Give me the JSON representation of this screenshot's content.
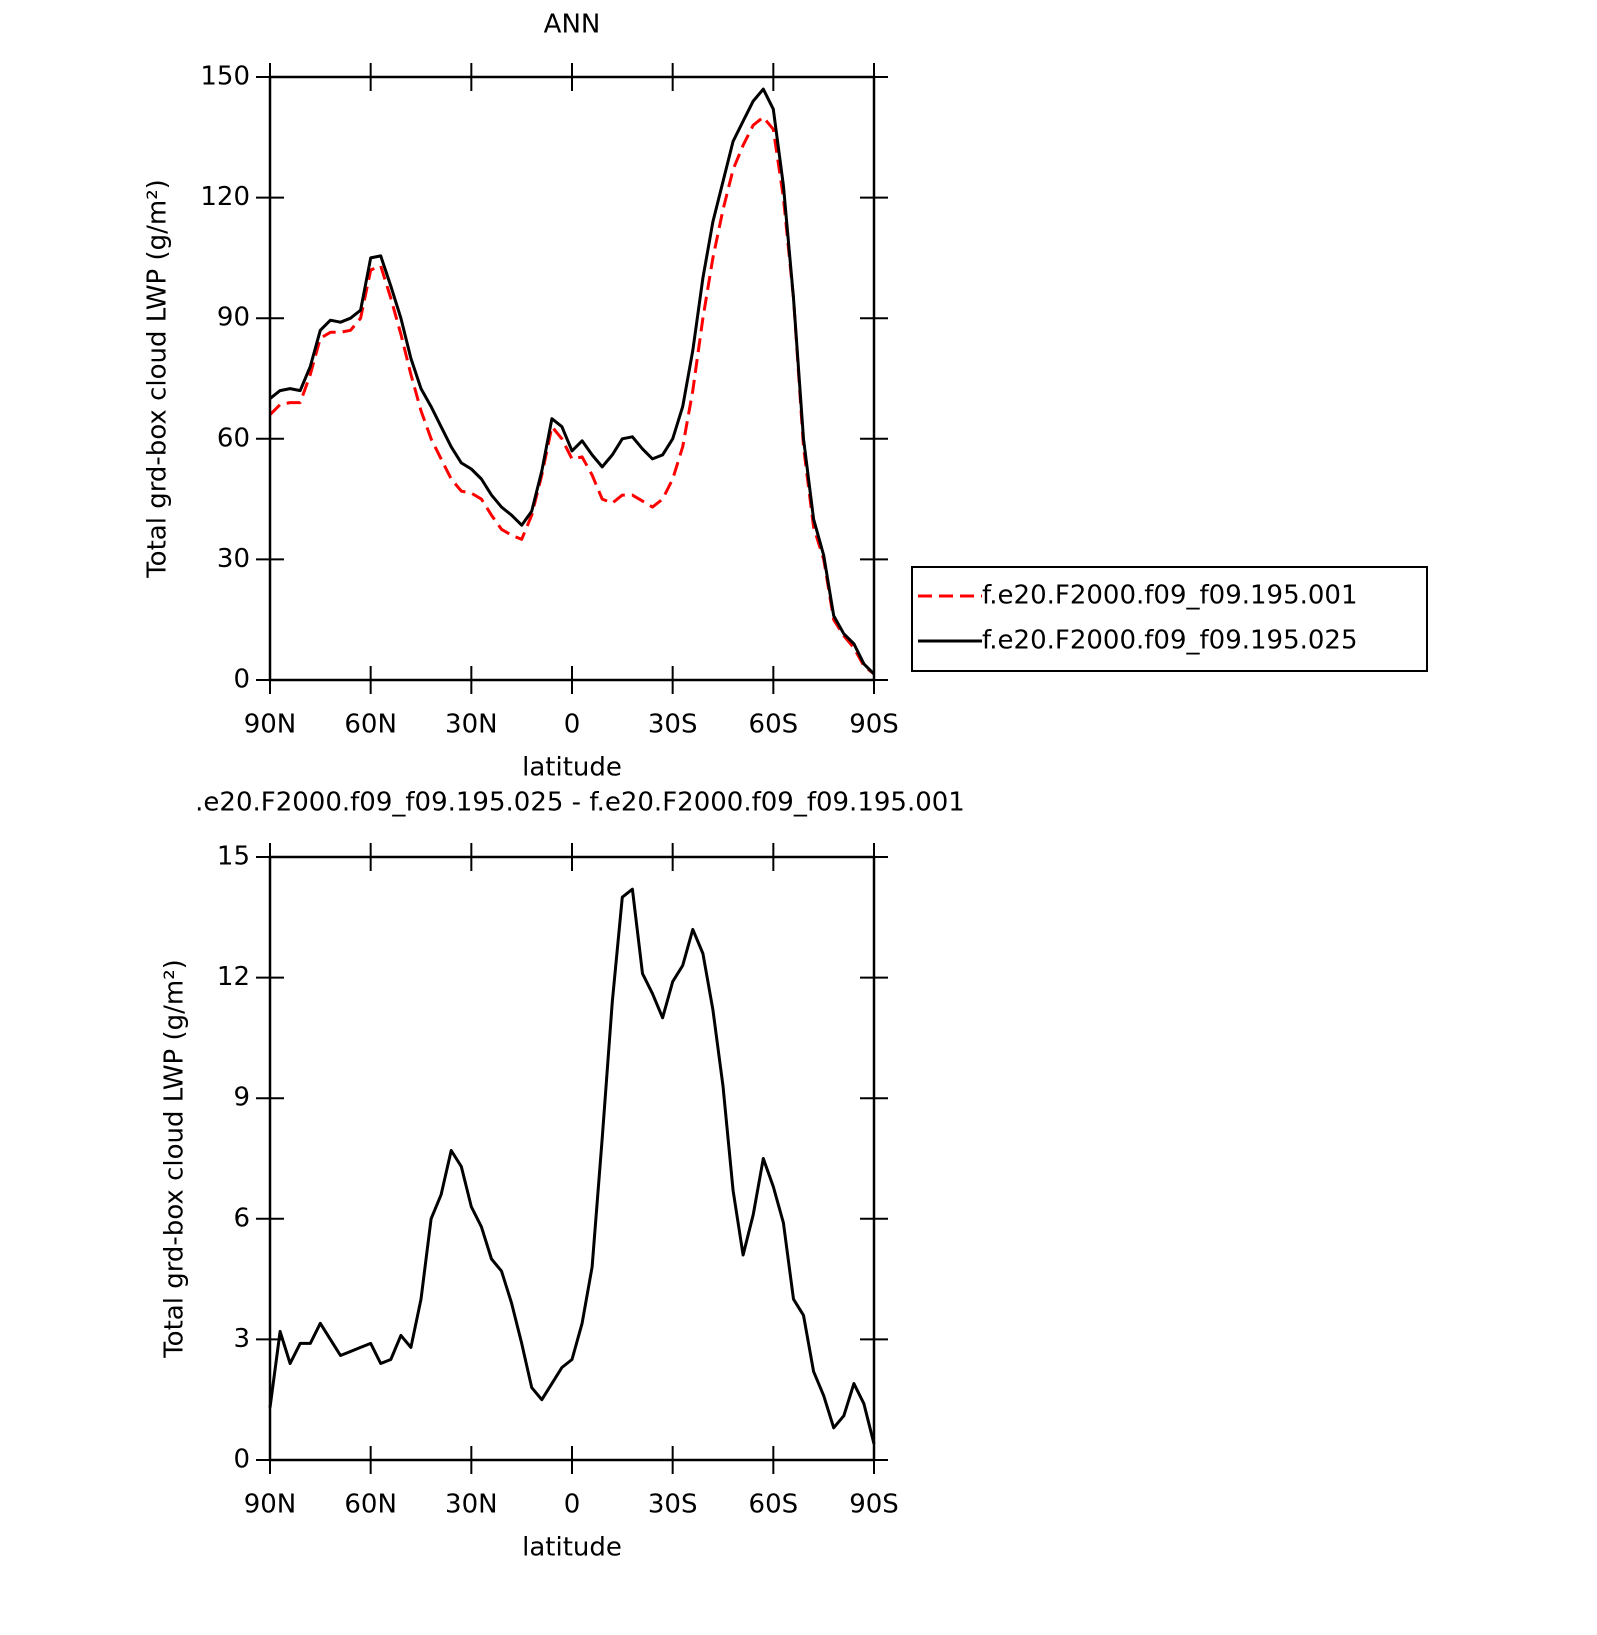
{
  "chart_data": [
    {
      "type": "line",
      "title": "ANN",
      "xlabel": "latitude",
      "ylabel": "Total grd-box cloud LWP (g/m²)",
      "x": [
        90,
        87,
        84,
        81,
        78,
        75,
        72,
        69,
        66,
        63,
        60,
        57,
        54,
        51,
        48,
        45,
        42,
        39,
        36,
        33,
        30,
        27,
        24,
        21,
        18,
        15,
        12,
        9,
        6,
        3,
        0,
        -3,
        -6,
        -9,
        -12,
        -15,
        -18,
        -21,
        -24,
        -27,
        -30,
        -33,
        -36,
        -39,
        -42,
        -45,
        -48,
        -51,
        -54,
        -57,
        -60,
        -63,
        -66,
        -69,
        -72,
        -75,
        -78,
        -81,
        -84,
        -87,
        -90
      ],
      "series": [
        {
          "name": "f.e20.F2000.f09_f09.195.001",
          "color": "#ff0000",
          "dash": true,
          "values": [
            66,
            68.5,
            69,
            69,
            76,
            85,
            86.5,
            86.5,
            87,
            90,
            102,
            103,
            95,
            86,
            76,
            67,
            60,
            55,
            50,
            47,
            46.5,
            45,
            41,
            37.5,
            36,
            35,
            41,
            51,
            63,
            60,
            55,
            55.5,
            51,
            45,
            44,
            46,
            46,
            44.5,
            43,
            45,
            50,
            58,
            72,
            90,
            105,
            117,
            127,
            133,
            138,
            140,
            137,
            120,
            95,
            58,
            38,
            30,
            15,
            11,
            8,
            3.5,
            1.5
          ]
        },
        {
          "name": "f.e20.F2000.f09_f09.195.025",
          "color": "#000000",
          "dash": false,
          "values": [
            70,
            72,
            72.5,
            72,
            78,
            87,
            89.5,
            89,
            90,
            92,
            105,
            105.5,
            98,
            90,
            80,
            72.5,
            68,
            63,
            58,
            54,
            52.5,
            50,
            46,
            43,
            41,
            38.5,
            42,
            52,
            65,
            63,
            57,
            59.5,
            56,
            53,
            56,
            60,
            60.5,
            57.5,
            55,
            56,
            60,
            68,
            82,
            100,
            114,
            124,
            134,
            139,
            144,
            147,
            142,
            123,
            95,
            60,
            40,
            31,
            16,
            11.5,
            9,
            4,
            1.5
          ]
        }
      ],
      "xlim": [
        90,
        -90
      ],
      "xticks": [
        {
          "value": 90,
          "label": "90N"
        },
        {
          "value": 60,
          "label": "60N"
        },
        {
          "value": 30,
          "label": "30N"
        },
        0,
        {
          "value": -30,
          "label": "30S"
        },
        {
          "value": -60,
          "label": "60S"
        },
        {
          "value": -90,
          "label": "90S"
        }
      ],
      "ylim": [
        0,
        150
      ],
      "yticks": [
        0,
        30,
        60,
        90,
        120,
        150
      ],
      "legend": "right"
    },
    {
      "type": "line",
      "title": ".e20.F2000.f09_f09.195.025 - f.e20.F2000.f09_f09.195.001",
      "xlabel": "latitude",
      "ylabel": "Total grd-box cloud LWP (g/m²)",
      "x": [
        90,
        87,
        84,
        81,
        78,
        75,
        72,
        69,
        66,
        63,
        60,
        57,
        54,
        51,
        48,
        45,
        42,
        39,
        36,
        33,
        30,
        27,
        24,
        21,
        18,
        15,
        12,
        9,
        6,
        3,
        0,
        -3,
        -6,
        -9,
        -12,
        -15,
        -18,
        -21,
        -24,
        -27,
        -30,
        -33,
        -36,
        -39,
        -42,
        -45,
        -48,
        -51,
        -54,
        -57,
        -60,
        -63,
        -66,
        -69,
        -72,
        -75,
        -78,
        -81,
        -84,
        -87,
        -90
      ],
      "series": [
        {
          "color": "#000000",
          "dash": false,
          "values": [
            1.3,
            3.2,
            2.4,
            2.9,
            2.9,
            3.4,
            3.0,
            2.6,
            2.7,
            2.8,
            2.9,
            2.4,
            2.5,
            3.1,
            2.8,
            4.0,
            6.0,
            6.6,
            7.7,
            7.3,
            6.3,
            5.8,
            5.0,
            4.7,
            3.9,
            2.9,
            1.8,
            1.5,
            1.9,
            2.3,
            2.5,
            3.4,
            4.8,
            8.0,
            11.4,
            14.0,
            14.2,
            12.1,
            11.6,
            11.0,
            11.9,
            12.3,
            13.2,
            12.6,
            11.2,
            9.3,
            6.7,
            5.1,
            6.1,
            7.5,
            6.8,
            5.9,
            4.0,
            3.6,
            2.2,
            1.6,
            0.8,
            1.1,
            1.9,
            1.4,
            0.4
          ]
        }
      ],
      "xlim": [
        90,
        -90
      ],
      "xticks": [
        {
          "value": 90,
          "label": "90N"
        },
        {
          "value": 60,
          "label": "60N"
        },
        {
          "value": 30,
          "label": "30N"
        },
        0,
        {
          "value": -30,
          "label": "30S"
        },
        {
          "value": -60,
          "label": "60S"
        },
        {
          "value": -90,
          "label": "90S"
        }
      ],
      "ylim": [
        0,
        15
      ],
      "yticks": [
        0,
        3,
        6,
        9,
        12,
        15
      ]
    }
  ]
}
